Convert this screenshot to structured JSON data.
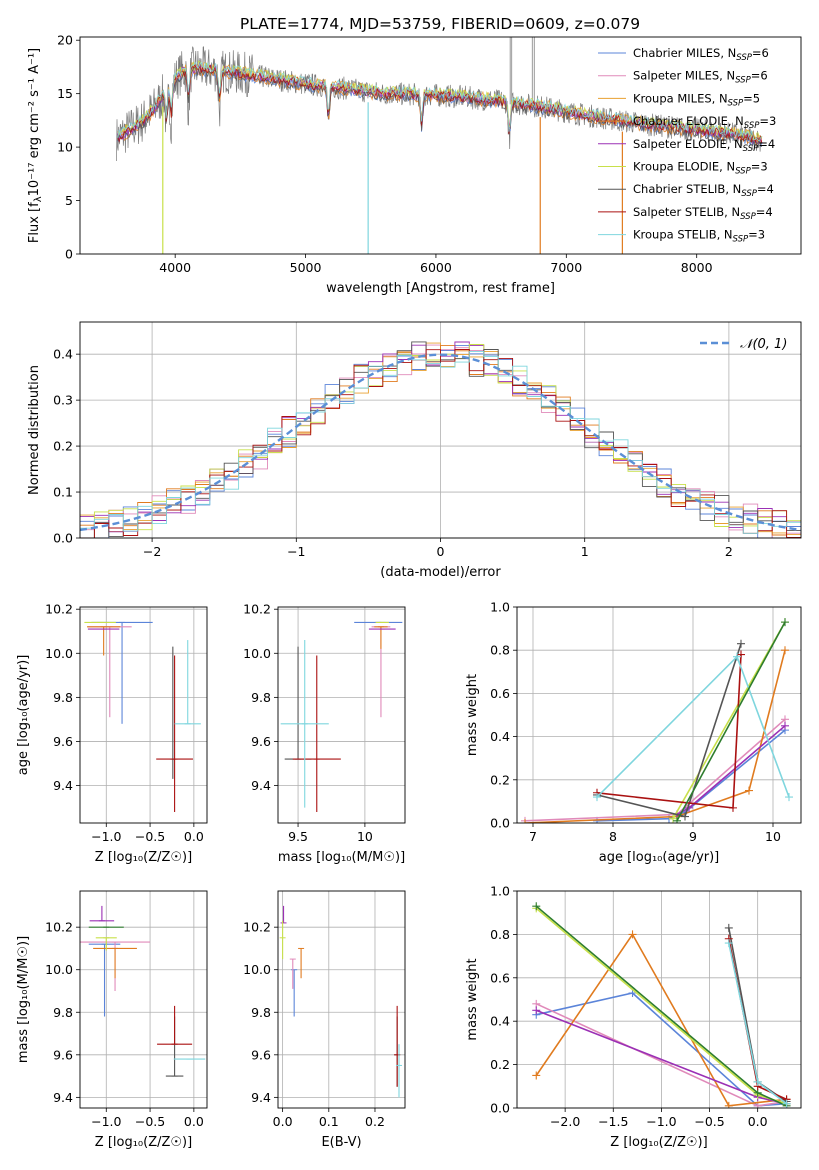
{
  "figure_title": "PLATE=1774, MJD=53759, FIBERID=0609, z=0.079",
  "palette": {
    "Chabrier MILES": "#5b84d9",
    "Salpeter MILES": "#e08aba",
    "Kroupa MILES": "#e07b1f",
    "Chabrier ELODIE": "#e07b1f",
    "Salpeter ELODIE": "#9b30b5",
    "Kroupa ELODIE": "#c8e04a",
    "Chabrier STELIB": "#555555",
    "Salpeter STELIB": "#aa1111",
    "Kroupa STELIB": "#7fd6de"
  },
  "legend": [
    {
      "label": "Chabrier MILES, N",
      "sub": "SSP",
      "tail": "=6",
      "color": "#5b84d9"
    },
    {
      "label": "Salpeter MILES, N",
      "sub": "SSP",
      "tail": "=6",
      "color": "#e08aba"
    },
    {
      "label": "Kroupa MILES, N",
      "sub": "SSP",
      "tail": "=5",
      "color": "#e8a030"
    },
    {
      "label": "Chabrier ELODIE, N",
      "sub": "SSP",
      "tail": "=3",
      "color": "#e07b1f"
    },
    {
      "label": "Salpeter ELODIE, N",
      "sub": "SSP",
      "tail": "=4",
      "color": "#9b30b5"
    },
    {
      "label": "Kroupa ELODIE, N",
      "sub": "SSP",
      "tail": "=3",
      "color": "#c8e04a"
    },
    {
      "label": "Chabrier STELIB, N",
      "sub": "SSP",
      "tail": "=4",
      "color": "#555555"
    },
    {
      "label": "Salpeter STELIB, N",
      "sub": "SSP",
      "tail": "=4",
      "color": "#aa1111"
    },
    {
      "label": "Kroupa STELIB, N",
      "sub": "SSP",
      "tail": "=3",
      "color": "#7fd6de"
    }
  ],
  "chart_data": [
    {
      "id": "spectrum",
      "type": "line",
      "ylabel": "Flux [f",
      "ylabel_sub": "λ",
      "ylabel_tail": "10⁻¹⁷ erg cm⁻² s⁻¹ A⁻¹]",
      "xlabel": "wavelength [Angstrom, rest frame]",
      "xlim": [
        3270,
        8800
      ],
      "ylim": [
        0,
        20.3
      ],
      "xticks": [
        4000,
        5000,
        6000,
        7000,
        8000
      ],
      "yticks": [
        0,
        5,
        10,
        15,
        20
      ],
      "continuum": {
        "x": [
          3550,
          3650,
          3750,
          3850,
          3950,
          4050,
          4150,
          4300,
          4500,
          4700,
          5000,
          5300,
          5600,
          5900,
          6200,
          6500,
          6800,
          7100,
          7400,
          7700,
          8000,
          8300,
          8500
        ],
        "y": [
          10.8,
          11.6,
          12.4,
          13.8,
          15.6,
          17.0,
          17.4,
          17.2,
          16.9,
          16.5,
          15.9,
          15.5,
          15.0,
          14.9,
          14.7,
          14.3,
          13.8,
          13.1,
          12.5,
          12.0,
          11.6,
          11.2,
          10.6
        ]
      },
      "absorption_lines": [
        3934,
        3969,
        4102,
        4340,
        5175,
        5890,
        6563
      ],
      "spikes_down": [
        {
          "x": 3905,
          "y": 0
        },
        {
          "x": 5480,
          "y": 0
        },
        {
          "x": 6800,
          "y": 0
        },
        {
          "x": 7430,
          "y": 0
        }
      ],
      "gap": [
        6540,
        6790
      ]
    },
    {
      "id": "residuals",
      "type": "step",
      "ylabel": "Normed distribution",
      "xlabel": "(data-model)/error",
      "xlim": [
        -2.5,
        2.5
      ],
      "ylim": [
        0,
        0.47
      ],
      "xticks": [
        -2,
        -1,
        0,
        1,
        2
      ],
      "yticks": [
        0.0,
        0.1,
        0.2,
        0.3,
        0.4
      ],
      "bin_width": 0.1,
      "reference_label": "𝒩(0, 1)",
      "reference_color": "#5b8fd6"
    },
    {
      "id": "age_vs_Z",
      "type": "errorbar",
      "ylabel": "age  [log₁₀(age/yr)]",
      "xlabel": "Z [log₁₀(Z/Z☉)]",
      "xlim": [
        -1.3,
        0.15
      ],
      "ylim": [
        9.23,
        10.21
      ],
      "xticks": [
        -1.0,
        -0.5,
        0.0
      ],
      "yticks": [
        9.4,
        9.6,
        9.8,
        10.0,
        10.2
      ],
      "points": [
        {
          "c": "#5b84d9",
          "x": -0.82,
          "xerr": 0.35,
          "y": 10.14,
          "yerr": [
            0.46,
            0.0
          ]
        },
        {
          "c": "#e08aba",
          "x": -0.96,
          "xerr": 0.25,
          "y": 10.12,
          "yerr": [
            0.41,
            0.0
          ]
        },
        {
          "c": "#e07b1f",
          "x": -1.03,
          "xerr": 0.19,
          "y": 10.12,
          "yerr": [
            0.13,
            0.0
          ]
        },
        {
          "c": "#9b30b5",
          "x": -1.03,
          "xerr": 0.18,
          "y": 10.11,
          "yerr": [
            0.0,
            0.0
          ]
        },
        {
          "c": "#c8e04a",
          "x": -1.07,
          "xerr": 0.18,
          "y": 10.14,
          "yerr": [
            0.0,
            0.0
          ]
        },
        {
          "c": "#555555",
          "x": -0.24,
          "xerr": 0.0,
          "y": 9.52,
          "yerr": [
            0.09,
            0.51
          ]
        },
        {
          "c": "#aa1111",
          "x": -0.22,
          "xerr": 0.21,
          "y": 9.52,
          "yerr": [
            0.24,
            0.47
          ]
        },
        {
          "c": "#7fd6de",
          "x": -0.07,
          "xerr": 0.15,
          "y": 9.68,
          "yerr": [
            0.0,
            0.38
          ]
        }
      ]
    },
    {
      "id": "age_vs_mass",
      "type": "errorbar",
      "xlabel": "mass [log₁₀(M/M☉)]",
      "xlim": [
        9.35,
        10.3
      ],
      "ylim": [
        9.23,
        10.21
      ],
      "xticks": [
        9.5,
        10.0
      ],
      "yticks": [
        9.4,
        9.6,
        9.8,
        10.0,
        10.2
      ],
      "points": [
        {
          "c": "#5b84d9",
          "x": 10.1,
          "xerr": 0.18,
          "y": 10.14,
          "yerr": [
            0.0,
            0.0
          ]
        },
        {
          "c": "#e08aba",
          "x": 10.12,
          "xerr": 0.07,
          "y": 10.12,
          "yerr": [
            0.41,
            0.0
          ]
        },
        {
          "c": "#e07b1f",
          "x": 10.12,
          "xerr": 0.05,
          "y": 10.12,
          "yerr": [
            0.1,
            0.0
          ]
        },
        {
          "c": "#9b30b5",
          "x": 10.13,
          "xerr": 0.1,
          "y": 10.11,
          "yerr": [
            0.0,
            0.0
          ]
        },
        {
          "c": "#c8e04a",
          "x": 10.13,
          "xerr": 0.05,
          "y": 10.14,
          "yerr": [
            0.0,
            0.0
          ]
        },
        {
          "c": "#555555",
          "x": 9.5,
          "xerr": 0.1,
          "y": 9.52,
          "yerr": [
            0.0,
            0.51
          ]
        },
        {
          "c": "#aa1111",
          "x": 9.64,
          "xerr": 0.18,
          "y": 9.52,
          "yerr": [
            0.24,
            0.47
          ]
        },
        {
          "c": "#7fd6de",
          "x": 9.55,
          "xerr": 0.18,
          "y": 9.68,
          "yerr": [
            0.38,
            0.38
          ]
        }
      ]
    },
    {
      "id": "mw_vs_age",
      "type": "line",
      "ylabel": "mass weight",
      "xlabel": "age  [log₁₀(age/yr)]",
      "xlim": [
        6.8,
        10.35
      ],
      "ylim": [
        0,
        1.0
      ],
      "xticks": [
        7,
        8,
        9,
        10
      ],
      "yticks": [
        0.0,
        0.2,
        0.4,
        0.6,
        0.8,
        1.0
      ],
      "series": [
        {
          "c": "#5b84d9",
          "x": [
            7.8,
            8.7,
            8.9,
            10.15
          ],
          "y": [
            0.01,
            0.02,
            0.05,
            0.43
          ]
        },
        {
          "c": "#e08aba",
          "x": [
            6.9,
            8.8,
            10.15
          ],
          "y": [
            0.01,
            0.04,
            0.48
          ]
        },
        {
          "c": "#e07b1f",
          "x": [
            6.9,
            8.8,
            9.7,
            10.15
          ],
          "y": [
            0.0,
            0.03,
            0.15,
            0.8
          ]
        },
        {
          "c": "#9b30b5",
          "x": [
            8.8,
            8.95,
            10.15
          ],
          "y": [
            0.04,
            0.07,
            0.45
          ]
        },
        {
          "c": "#c8e04a",
          "x": [
            8.75,
            10.15
          ],
          "y": [
            0.02,
            0.93
          ]
        },
        {
          "c": "#555555",
          "x": [
            7.8,
            8.9,
            9.6
          ],
          "y": [
            0.13,
            0.03,
            0.83
          ]
        },
        {
          "c": "#aa1111",
          "x": [
            7.8,
            9.5,
            9.6
          ],
          "y": [
            0.14,
            0.07,
            0.78
          ]
        },
        {
          "c": "#7fd6de",
          "x": [
            7.8,
            9.55,
            10.2
          ],
          "y": [
            0.12,
            0.77,
            0.12
          ]
        },
        {
          "c": "#2e7d2e",
          "x": [
            8.8,
            10.15
          ],
          "y": [
            0.01,
            0.93
          ]
        }
      ]
    },
    {
      "id": "mass_vs_Z",
      "type": "errorbar",
      "ylabel": "mass [log₁₀(M/M☉)]",
      "xlabel": "Z [log₁₀(Z/Z☉)]",
      "xlim": [
        -1.3,
        0.15
      ],
      "ylim": [
        9.35,
        10.37
      ],
      "xticks": [
        -1.0,
        -0.5,
        0.0
      ],
      "yticks": [
        9.4,
        9.6,
        9.8,
        10.0,
        10.2
      ],
      "points": [
        {
          "c": "#5b84d9",
          "x": -1.02,
          "xerr": 0.18,
          "y": 10.12,
          "yerr": [
            0.34,
            0.0
          ]
        },
        {
          "c": "#e08aba",
          "x": -0.9,
          "xerr": 0.4,
          "y": 10.13,
          "yerr": [
            0.23,
            0.0
          ]
        },
        {
          "c": "#e07b1f",
          "x": -0.9,
          "xerr": 0.25,
          "y": 10.1,
          "yerr": [
            0.14,
            0.0
          ]
        },
        {
          "c": "#9b30b5",
          "x": -1.05,
          "xerr": 0.14,
          "y": 10.23,
          "yerr": [
            0.0,
            0.07
          ]
        },
        {
          "c": "#c8e04a",
          "x": -1.0,
          "xerr": 0.12,
          "y": 10.15,
          "yerr": [
            0.06,
            0.0
          ]
        },
        {
          "c": "#555555",
          "x": -0.22,
          "xerr": 0.1,
          "y": 9.5,
          "yerr": [
            0.0,
            0.28
          ]
        },
        {
          "c": "#aa1111",
          "x": -0.22,
          "xerr": 0.2,
          "y": 9.65,
          "yerr": [
            0.0,
            0.18
          ]
        },
        {
          "c": "#7fd6de",
          "x": -0.05,
          "xerr": 0.18,
          "y": 9.58,
          "yerr": [
            0.0,
            0.0
          ]
        },
        {
          "c": "#2e7d2e",
          "x": -1.0,
          "xerr": 0.2,
          "y": 10.2,
          "yerr": [
            0.0,
            0.0
          ]
        }
      ]
    },
    {
      "id": "mass_vs_EBV",
      "type": "errorbar",
      "xlabel": "E(B-V)",
      "xlim": [
        -0.01,
        0.265
      ],
      "ylim": [
        9.35,
        10.37
      ],
      "xticks": [
        0.0,
        0.1,
        0.2
      ],
      "yticks": [
        9.4,
        9.6,
        9.8,
        10.0,
        10.2
      ],
      "points": [
        {
          "c": "#5b84d9",
          "x": 0.025,
          "xerr": 0.0,
          "y": 10.0,
          "yerr": [
            0.22,
            0.0
          ]
        },
        {
          "c": "#e08aba",
          "x": 0.022,
          "xerr": 0.0,
          "y": 10.05,
          "yerr": [
            0.14,
            0.0
          ]
        },
        {
          "c": "#e07b1f",
          "x": 0.04,
          "xerr": 0.0,
          "y": 10.1,
          "yerr": [
            0.14,
            0.0
          ]
        },
        {
          "c": "#9b30b5",
          "x": 0.002,
          "xerr": 0.0,
          "y": 10.22,
          "yerr": [
            0.0,
            0.08
          ]
        },
        {
          "c": "#c8e04a",
          "x": 0.0,
          "xerr": 0.0,
          "y": 10.15,
          "yerr": [
            0.1,
            0.08
          ]
        },
        {
          "c": "#555555",
          "x": 0.248,
          "xerr": 0.0,
          "y": 9.6,
          "yerr": [
            0.15,
            0.18
          ]
        },
        {
          "c": "#aa1111",
          "x": 0.248,
          "xerr": 0.0,
          "y": 9.6,
          "yerr": [
            0.15,
            0.23
          ]
        },
        {
          "c": "#7fd6de",
          "x": 0.252,
          "xerr": 0.0,
          "y": 9.55,
          "yerr": [
            0.15,
            0.1
          ]
        }
      ]
    },
    {
      "id": "mw_vs_Z",
      "type": "line",
      "ylabel": "mass weight",
      "xlabel": "Z [log₁₀(Z/Z☉)]",
      "xlim": [
        -2.5,
        0.45
      ],
      "ylim": [
        0,
        1.0
      ],
      "xticks": [
        -2.0,
        -1.5,
        -1.0,
        -0.5,
        0.0
      ],
      "yticks": [
        0.0,
        0.2,
        0.4,
        0.6,
        0.8,
        1.0
      ],
      "series": [
        {
          "c": "#5b84d9",
          "x": [
            -2.3,
            -1.3,
            0.0,
            0.3
          ],
          "y": [
            0.43,
            0.53,
            0.01,
            0.02
          ]
        },
        {
          "c": "#e08aba",
          "x": [
            -2.3,
            0.0,
            0.3
          ],
          "y": [
            0.48,
            0.01,
            0.03
          ]
        },
        {
          "c": "#e07b1f",
          "x": [
            -2.3,
            -1.3,
            -0.3,
            0.3
          ],
          "y": [
            0.15,
            0.8,
            0.01,
            0.04
          ]
        },
        {
          "c": "#9b30b5",
          "x": [
            -2.3,
            0.0,
            0.3
          ],
          "y": [
            0.45,
            0.05,
            0.02
          ]
        },
        {
          "c": "#c8e04a",
          "x": [
            -2.3,
            0.0,
            0.3
          ],
          "y": [
            0.92,
            0.06,
            0.02
          ]
        },
        {
          "c": "#2e7d2e",
          "x": [
            -2.3,
            0.0,
            0.3
          ],
          "y": [
            0.93,
            0.07,
            0.01
          ]
        },
        {
          "c": "#555555",
          "x": [
            -0.3,
            0.0,
            0.3
          ],
          "y": [
            0.83,
            0.12,
            0.03
          ]
        },
        {
          "c": "#aa1111",
          "x": [
            -0.3,
            0.0,
            0.3
          ],
          "y": [
            0.78,
            0.1,
            0.04
          ]
        },
        {
          "c": "#7fd6de",
          "x": [
            -0.3,
            0.0,
            0.3
          ],
          "y": [
            0.76,
            0.12,
            0.02
          ]
        }
      ]
    }
  ]
}
